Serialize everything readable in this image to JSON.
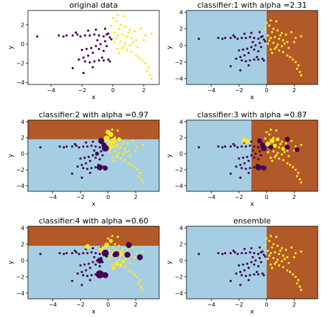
{
  "colors": {
    "class_neg": "#440154",
    "class_pos": "#fde725",
    "region_light": "#a6cee3",
    "region_dark": "#b15928"
  },
  "chart_data": [
    {
      "type": "scatter",
      "title": "original data",
      "xlabel": "x",
      "ylabel": "y",
      "xlim": [
        -5.5,
        3.0
      ],
      "ylim": [
        -4.2,
        3.5
      ],
      "xticks": [
        -4,
        -2,
        0,
        2
      ],
      "yticks": [
        -4,
        -2,
        0,
        2
      ],
      "regions": []
    },
    {
      "type": "scatter",
      "title": "classifier:1 with alpha =2.31",
      "xlabel": "x",
      "ylabel": "y",
      "xlim": [
        -5.8,
        3.7
      ],
      "ylim": [
        -4.7,
        4.2
      ],
      "xticks": [
        -4,
        -2,
        0,
        2
      ],
      "yticks": [
        -4,
        -2,
        0,
        2,
        4
      ],
      "regions": [
        {
          "axis": "x",
          "lo": -5.8,
          "hi": 0.0,
          "color": "light"
        },
        {
          "axis": "x",
          "lo": 0.0,
          "hi": 3.7,
          "color": "dark"
        }
      ]
    },
    {
      "type": "scatter",
      "title": "classifier:2 with alpha =0.97",
      "xlabel": "x",
      "ylabel": "y",
      "xlim": [
        -5.8,
        3.7
      ],
      "ylim": [
        -4.7,
        4.2
      ],
      "xticks": [
        -4,
        -2,
        0,
        2
      ],
      "yticks": [
        -4,
        -2,
        0,
        2,
        4
      ],
      "regions": [
        {
          "axis": "y",
          "lo": -4.7,
          "hi": 1.8,
          "color": "light"
        },
        {
          "axis": "y",
          "lo": 1.8,
          "hi": 4.2,
          "color": "dark"
        }
      ]
    },
    {
      "type": "scatter",
      "title": "classifier:3 with alpha =0.87",
      "xlabel": "x",
      "ylabel": "y",
      "xlim": [
        -5.8,
        3.7
      ],
      "ylim": [
        -4.7,
        4.2
      ],
      "xticks": [
        -4,
        -2,
        0,
        2
      ],
      "yticks": [
        -4,
        -2,
        0,
        2,
        4
      ],
      "regions": [
        {
          "axis": "x",
          "lo": -5.8,
          "hi": -1.1,
          "color": "light"
        },
        {
          "axis": "x",
          "lo": -1.1,
          "hi": 3.7,
          "color": "dark"
        }
      ]
    },
    {
      "type": "scatter",
      "title": "classifier:4 with alpha =0.60",
      "xlabel": "x",
      "ylabel": "y",
      "xlim": [
        -5.8,
        3.7
      ],
      "ylim": [
        -4.7,
        4.2
      ],
      "xticks": [
        -4,
        -2,
        0,
        2
      ],
      "yticks": [
        -4,
        -2,
        0,
        2,
        4
      ],
      "regions": [
        {
          "axis": "y",
          "lo": -4.7,
          "hi": 1.8,
          "color": "light"
        },
        {
          "axis": "y",
          "lo": 1.8,
          "hi": 4.2,
          "color": "dark"
        }
      ]
    },
    {
      "type": "scatter",
      "title": "ensemble",
      "xlabel": "x",
      "ylabel": "y",
      "xlim": [
        -5.8,
        3.7
      ],
      "ylim": [
        -4.7,
        4.2
      ],
      "xticks": [
        -4,
        -2,
        0,
        2
      ],
      "yticks": [
        -4,
        -2,
        0,
        2,
        4
      ],
      "regions": [
        {
          "axis": "x",
          "lo": -5.8,
          "hi": 0.0,
          "color": "light"
        },
        {
          "axis": "x",
          "lo": 0.0,
          "hi": 3.7,
          "color": "dark"
        }
      ]
    }
  ],
  "points": {
    "neg": [
      [
        -4.9,
        0.8
      ],
      [
        -3.5,
        0.9
      ],
      [
        -3.2,
        0.8
      ],
      [
        -3.0,
        0.9
      ],
      [
        -2.6,
        0.9
      ],
      [
        -2.3,
        1.0
      ],
      [
        -2.1,
        0.8
      ],
      [
        -1.8,
        0.9
      ],
      [
        -1.5,
        0.9
      ],
      [
        -1.2,
        1.0
      ],
      [
        -0.9,
        0.9
      ],
      [
        -0.6,
        0.8
      ],
      [
        -0.4,
        1.0
      ],
      [
        -0.2,
        0.7
      ],
      [
        -2.4,
        1.2
      ],
      [
        -1.6,
        1.4
      ],
      [
        -1.1,
        1.5
      ],
      [
        -0.5,
        1.6
      ],
      [
        -0.3,
        1.1
      ],
      [
        -0.1,
        0.5
      ],
      [
        -0.5,
        0.3
      ],
      [
        -0.8,
        0.0
      ],
      [
        -1.1,
        -0.2
      ],
      [
        -1.4,
        -0.4
      ],
      [
        -1.7,
        -0.5
      ],
      [
        -2.0,
        -0.6
      ],
      [
        -0.9,
        -0.5
      ],
      [
        -0.6,
        -0.7
      ],
      [
        -1.3,
        -0.9
      ],
      [
        -1.6,
        -1.2
      ],
      [
        -1.9,
        -1.4
      ],
      [
        -2.2,
        -1.6
      ],
      [
        -1.8,
        -1.8
      ],
      [
        -1.5,
        -1.9
      ],
      [
        -1.2,
        -1.8
      ],
      [
        -0.9,
        -1.7
      ],
      [
        -0.6,
        -1.7
      ],
      [
        -0.3,
        -1.6
      ],
      [
        -1.3,
        -2.4
      ],
      [
        -1.9,
        -3.0
      ],
      [
        -2.6,
        -2.5
      ],
      [
        -0.2,
        -1.8
      ],
      [
        -0.7,
        -1.4
      ],
      [
        -0.4,
        -0.2
      ],
      [
        -1.0,
        0.4
      ]
    ],
    "pos": [
      [
        0.3,
        3.0
      ],
      [
        0.7,
        2.9
      ],
      [
        0.2,
        2.4
      ],
      [
        0.5,
        2.0
      ],
      [
        0.8,
        1.8
      ],
      [
        1.1,
        1.5
      ],
      [
        1.4,
        1.3
      ],
      [
        0.4,
        1.6
      ],
      [
        0.1,
        1.2
      ],
      [
        0.6,
        1.0
      ],
      [
        0.9,
        0.8
      ],
      [
        1.2,
        0.6
      ],
      [
        1.5,
        0.4
      ],
      [
        2.1,
        0.9
      ],
      [
        2.5,
        1.1
      ],
      [
        0.2,
        0.6
      ],
      [
        0.5,
        0.3
      ],
      [
        0.8,
        0.1
      ],
      [
        1.1,
        -0.1
      ],
      [
        0.6,
        -0.4
      ],
      [
        0.9,
        -0.6
      ],
      [
        1.2,
        -0.8
      ],
      [
        0.4,
        -0.9
      ],
      [
        1.5,
        -1.2
      ],
      [
        1.7,
        -1.4
      ],
      [
        1.9,
        -1.7
      ],
      [
        2.1,
        -2.0
      ],
      [
        2.3,
        -2.4
      ],
      [
        2.4,
        -3.2
      ],
      [
        2.5,
        -3.6
      ],
      [
        2.2,
        -2.8
      ],
      [
        0.1,
        0.2
      ],
      [
        -0.1,
        1.9
      ],
      [
        0.0,
        2.7
      ],
      [
        1.6,
        -0.3
      ],
      [
        1.3,
        0.2
      ],
      [
        0.7,
        -0.2
      ],
      [
        0.3,
        -0.5
      ],
      [
        1.8,
        1.6
      ],
      [
        2.0,
        0.4
      ],
      [
        1.0,
        1.2
      ],
      [
        0.3,
        0.9
      ]
    ]
  },
  "weights": {
    "3": {
      "neg": [
        [
          -0.2,
          0.7,
          7
        ],
        [
          -0.5,
          1.6,
          6
        ],
        [
          -0.3,
          1.1,
          5
        ],
        [
          -0.6,
          -1.7,
          6
        ],
        [
          -0.2,
          -1.8,
          5
        ],
        [
          -0.8,
          0.0,
          4
        ]
      ],
      "pos": [
        [
          -0.1,
          1.9,
          6
        ],
        [
          0.2,
          2.4,
          5
        ],
        [
          0.0,
          2.7,
          5
        ],
        [
          0.4,
          1.6,
          6
        ],
        [
          0.1,
          1.2,
          5
        ],
        [
          0.3,
          0.9,
          4
        ],
        [
          0.6,
          1.0,
          4
        ],
        [
          0.8,
          1.8,
          4
        ]
      ]
    },
    "4": {
      "neg": [
        [
          -0.2,
          0.7,
          6
        ],
        [
          -0.3,
          1.1,
          5
        ],
        [
          -0.5,
          1.6,
          5
        ],
        [
          -0.6,
          -1.7,
          6
        ],
        [
          -0.2,
          -1.8,
          5
        ],
        [
          0.3,
          0.8,
          5
        ],
        [
          1.5,
          0.8,
          5
        ],
        [
          2.2,
          0.5,
          5
        ],
        [
          1.5,
          1.8,
          5
        ]
      ],
      "pos": [
        [
          -1.6,
          1.7,
          5
        ],
        [
          -1.4,
          1.5,
          5
        ],
        [
          0.1,
          1.2,
          5
        ],
        [
          0.4,
          1.6,
          5
        ],
        [
          0.8,
          1.8,
          4
        ],
        [
          1.2,
          0.6,
          4
        ],
        [
          0.6,
          1.0,
          4
        ]
      ]
    },
    "5": {
      "neg": [
        [
          -0.2,
          0.9,
          7
        ],
        [
          -0.6,
          -1.7,
          8
        ],
        [
          -0.2,
          -1.8,
          6
        ],
        [
          0.6,
          0.8,
          6
        ],
        [
          1.4,
          0.7,
          6
        ],
        [
          2.3,
          0.4,
          6
        ],
        [
          1.5,
          1.9,
          6
        ],
        [
          -0.6,
          0.0,
          6
        ],
        [
          0.5,
          0.7,
          5
        ]
      ],
      "pos": [
        [
          -1.5,
          1.7,
          5
        ],
        [
          -0.4,
          1.3,
          6
        ],
        [
          -0.1,
          1.9,
          5
        ],
        [
          0.2,
          2.4,
          4
        ],
        [
          0.6,
          1.0,
          5
        ],
        [
          0.9,
          0.8,
          5
        ],
        [
          1.1,
          -0.1,
          4
        ],
        [
          0.6,
          -0.4,
          4
        ],
        [
          0.4,
          -0.9,
          4
        ],
        [
          0.9,
          -0.6,
          4
        ]
      ]
    }
  }
}
